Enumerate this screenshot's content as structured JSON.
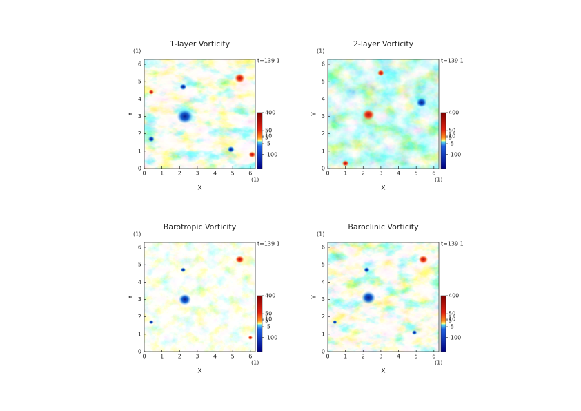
{
  "chart_data": [
    {
      "type": "contour",
      "title": "1-layer Vorticity",
      "xlabel": "X",
      "ylabel": "Y",
      "x_unit": "(1)",
      "y_unit": "(1)",
      "time_label": "t=139 1",
      "xlim": [
        0,
        6.28
      ],
      "ylim": [
        0,
        6.28
      ],
      "xticks": [
        0,
        1,
        2,
        3,
        4,
        5,
        6
      ],
      "yticks": [
        0,
        1,
        2,
        3,
        4,
        5,
        6
      ],
      "clim": [
        -400,
        400
      ],
      "cticks": [
        400,
        50,
        10,
        5,
        -5,
        -100
      ]
    },
    {
      "type": "contour",
      "title": "2-layer Vorticity",
      "xlabel": "X",
      "ylabel": "Y",
      "x_unit": "(1)",
      "y_unit": "(1)",
      "time_label": "t=139 1",
      "xlim": [
        0,
        6.28
      ],
      "ylim": [
        0,
        6.28
      ],
      "xticks": [
        0,
        1,
        2,
        3,
        4,
        5,
        6
      ],
      "yticks": [
        0,
        1,
        2,
        3,
        4,
        5,
        6
      ],
      "clim": [
        -400,
        400
      ],
      "cticks": [
        400,
        50,
        10,
        5,
        -5,
        -100
      ]
    },
    {
      "type": "contour",
      "title": "Barotropic Vorticity",
      "xlabel": "X",
      "ylabel": "Y",
      "x_unit": "(1)",
      "y_unit": "(1)",
      "time_label": "t=139 1",
      "xlim": [
        0,
        6.28
      ],
      "ylim": [
        0,
        6.28
      ],
      "xticks": [
        0,
        1,
        2,
        3,
        4,
        5,
        6
      ],
      "yticks": [
        0,
        1,
        2,
        3,
        4,
        5,
        6
      ],
      "clim": [
        -400,
        400
      ],
      "cticks": [
        400,
        50,
        10,
        5,
        -5,
        -100
      ]
    },
    {
      "type": "contour",
      "title": "Baroclinic Vorticity",
      "xlabel": "X",
      "ylabel": "Y",
      "x_unit": "(1)",
      "y_unit": "(1)",
      "time_label": "t=139 1",
      "xlim": [
        0,
        6.28
      ],
      "ylim": [
        0,
        6.28
      ],
      "xticks": [
        0,
        1,
        2,
        3,
        4,
        5,
        6
      ],
      "yticks": [
        0,
        1,
        2,
        3,
        4,
        5,
        6
      ],
      "clim": [
        -400,
        400
      ],
      "cticks": [
        400,
        50,
        10,
        5,
        -5,
        -100
      ]
    }
  ]
}
